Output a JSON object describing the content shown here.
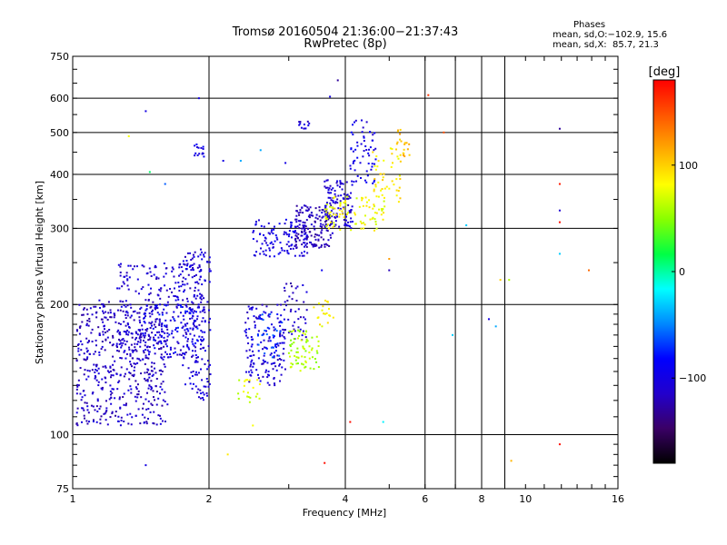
{
  "chart_data": {
    "type": "scatter",
    "title": "Tromsø 20160504 21:36:00−21:37:43",
    "subtitle": "RwPretec (8p)",
    "xlabel": "Frequency [MHz]",
    "ylabel": "Stationary phase Virtual Height [km]",
    "x_scale": "log",
    "y_scale": "log",
    "xlim": [
      1,
      16
    ],
    "ylim": [
      75,
      750
    ],
    "x_ticks": [
      1,
      2,
      4,
      6,
      8,
      10,
      16
    ],
    "x_tick_labels": [
      "1",
      "2",
      "4",
      "6",
      "8",
      "10",
      "16"
    ],
    "x_gridlines": [
      2,
      4,
      6,
      7,
      8,
      9
    ],
    "y_ticks": [
      75,
      100,
      200,
      300,
      400,
      500,
      600,
      750
    ],
    "y_tick_labels": [
      "75",
      "100",
      "200",
      "300",
      "400",
      "500",
      "600",
      "750"
    ],
    "y_gridlines": [
      100,
      200,
      300,
      400,
      500,
      600
    ],
    "grid": true,
    "phase_legend": {
      "title": "Phases",
      "line_o": "mean, sd,O:−102.9, 15.6",
      "line_x": "mean, sd,X:  85.7, 21.3"
    },
    "colorbar": {
      "label": "[deg]",
      "range": [
        -180,
        180
      ],
      "ticks": [
        100,
        0,
        -100
      ],
      "tick_labels": [
        "100",
        "0",
        "−100"
      ],
      "colormap": "rainbow",
      "colors": [
        "#000000",
        "#3a0066",
        "#2200cc",
        "#0000ff",
        "#0088ff",
        "#00ffff",
        "#00ff44",
        "#88ff00",
        "#ffff00",
        "#ffaa00",
        "#ff5500",
        "#ff0000"
      ]
    },
    "series": [
      {
        "clusters": [
          {
            "x": [
              1.02,
              1.62
            ],
            "y": [
              105,
              205
            ],
            "phase": -115,
            "count": 520
          },
          {
            "x": [
              1.25,
              1.95
            ],
            "y": [
              150,
              250
            ],
            "phase": -110,
            "count": 280
          },
          {
            "x": [
              1.4,
              1.9
            ],
            "y": [
              155,
              200
            ],
            "phase": -85,
            "count": 60
          },
          {
            "x": [
              1.75,
              2.02
            ],
            "y": [
              120,
              270
            ],
            "phase": -105,
            "count": 160
          },
          {
            "x": [
              2.4,
              2.95
            ],
            "y": [
              130,
              200
            ],
            "phase": -108,
            "count": 140
          },
          {
            "x": [
              2.55,
              2.9
            ],
            "y": [
              150,
              190
            ],
            "phase": -70,
            "count": 40
          },
          {
            "x": [
              2.85,
              3.3
            ],
            "y": [
              165,
              225
            ],
            "phase": -115,
            "count": 50
          },
          {
            "x": [
              2.5,
              3.3
            ],
            "y": [
              258,
              315
            ],
            "phase": -100,
            "count": 110
          },
          {
            "x": [
              3.1,
              3.75
            ],
            "y": [
              270,
              340
            ],
            "phase": -120,
            "count": 150
          },
          {
            "x": [
              3.6,
              4.15
            ],
            "y": [
              300,
              390
            ],
            "phase": -110,
            "count": 110
          },
          {
            "x": [
              4.1,
              4.7
            ],
            "y": [
              380,
              540
            ],
            "phase": -100,
            "count": 60
          },
          {
            "x": [
              3.6,
              4.9
            ],
            "y": [
              295,
              360
            ],
            "phase": 80,
            "count": 90
          },
          {
            "x": [
              4.6,
              5.3
            ],
            "y": [
              340,
              460
            ],
            "phase": 90,
            "count": 45
          },
          {
            "x": [
              5.2,
              5.55
            ],
            "y": [
              440,
              510
            ],
            "phase": 105,
            "count": 20
          },
          {
            "x": [
              3.0,
              3.5
            ],
            "y": [
              140,
              175
            ],
            "phase": 60,
            "count": 70
          },
          {
            "x": [
              2.3,
              2.6
            ],
            "y": [
              118,
              135
            ],
            "phase": 70,
            "count": 20
          },
          {
            "x": [
              3.4,
              3.8
            ],
            "y": [
              175,
              205
            ],
            "phase": 85,
            "count": 20
          },
          {
            "x": [
              1.85,
              1.95
            ],
            "y": [
              435,
              470
            ],
            "phase": -100,
            "count": 15
          },
          {
            "x": [
              3.15,
              3.35
            ],
            "y": [
              510,
              530
            ],
            "phase": -110,
            "count": 12
          }
        ],
        "isolated_points": [
          {
            "x": 1.45,
            "y": 560,
            "phase": -100
          },
          {
            "x": 1.33,
            "y": 490,
            "phase": 80
          },
          {
            "x": 1.48,
            "y": 405,
            "phase": 10
          },
          {
            "x": 1.6,
            "y": 380,
            "phase": -60
          },
          {
            "x": 1.9,
            "y": 600,
            "phase": -100
          },
          {
            "x": 2.15,
            "y": 430,
            "phase": -100
          },
          {
            "x": 2.35,
            "y": 430,
            "phase": -40
          },
          {
            "x": 2.6,
            "y": 455,
            "phase": -40
          },
          {
            "x": 2.95,
            "y": 425,
            "phase": -100
          },
          {
            "x": 3.7,
            "y": 605,
            "phase": -100
          },
          {
            "x": 3.85,
            "y": 660,
            "phase": -130
          },
          {
            "x": 6.1,
            "y": 610,
            "phase": 160
          },
          {
            "x": 6.6,
            "y": 500,
            "phase": 150
          },
          {
            "x": 7.4,
            "y": 305,
            "phase": -30
          },
          {
            "x": 8.3,
            "y": 185,
            "phase": -100
          },
          {
            "x": 8.6,
            "y": 178,
            "phase": -40
          },
          {
            "x": 8.8,
            "y": 228,
            "phase": 100
          },
          {
            "x": 9.2,
            "y": 228,
            "phase": 60
          },
          {
            "x": 9.3,
            "y": 87,
            "phase": 110
          },
          {
            "x": 11.9,
            "y": 510,
            "phase": -130
          },
          {
            "x": 11.9,
            "y": 380,
            "phase": 170
          },
          {
            "x": 11.9,
            "y": 310,
            "phase": 175
          },
          {
            "x": 11.9,
            "y": 262,
            "phase": -30
          },
          {
            "x": 11.9,
            "y": 95,
            "phase": 175
          },
          {
            "x": 11.9,
            "y": 330,
            "phase": -110
          },
          {
            "x": 13.8,
            "y": 240,
            "phase": 140
          },
          {
            "x": 6.9,
            "y": 170,
            "phase": -30
          },
          {
            "x": 5.0,
            "y": 240,
            "phase": -120
          },
          {
            "x": 5.0,
            "y": 255,
            "phase": 120
          },
          {
            "x": 4.1,
            "y": 107,
            "phase": 175
          },
          {
            "x": 4.85,
            "y": 107,
            "phase": -20
          },
          {
            "x": 3.55,
            "y": 240,
            "phase": -90
          },
          {
            "x": 2.2,
            "y": 90,
            "phase": 90
          },
          {
            "x": 1.45,
            "y": 85,
            "phase": -100
          },
          {
            "x": 3.6,
            "y": 86,
            "phase": 175
          },
          {
            "x": 2.5,
            "y": 105,
            "phase": 80
          }
        ]
      }
    ]
  }
}
